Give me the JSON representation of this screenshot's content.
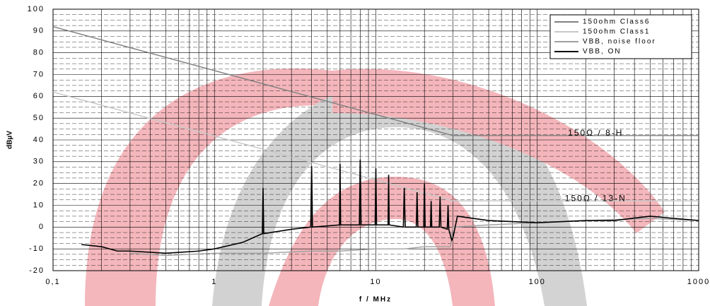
{
  "chart_data": {
    "type": "line",
    "x_label": "f / MHz",
    "y_label": "dBµV",
    "log_x": true,
    "grid": true,
    "xlim": [
      0.1,
      1000
    ],
    "ylim": [
      -20,
      100
    ],
    "xticks": [
      {
        "value": 0.1,
        "label": "0,1"
      },
      1,
      10,
      100,
      1000
    ],
    "yticks": [
      -20,
      -10,
      0,
      10,
      20,
      30,
      40,
      50,
      60,
      70,
      80,
      90,
      100
    ],
    "legend": "top-right",
    "annotations": [
      {
        "text": "150Ω / 8-H",
        "x": 230,
        "y": 43
      },
      {
        "text": "150Ω / 13-N",
        "x": 230,
        "y": 13
      }
    ],
    "series": [
      {
        "name": "150ohm Class6",
        "color": "#808080",
        "x": [
          0.1,
          30,
          1000
        ],
        "values": [
          92,
          42,
          42
        ]
      },
      {
        "name": "150ohm Class1",
        "color": "#c8c8c8",
        "x": [
          0.1,
          30,
          1000
        ],
        "values": [
          62,
          12,
          12
        ]
      },
      {
        "name": "VBB, noise floor",
        "color": "#a0a0a0",
        "x": [
          0.3,
          0.5,
          1,
          2,
          4,
          6,
          10,
          15,
          20,
          29,
          30,
          50,
          100,
          200,
          500,
          1000
        ],
        "values": [
          -12,
          -13,
          -12,
          -12,
          -11,
          -11,
          -10,
          -10,
          -9,
          -9,
          0,
          1,
          2,
          3,
          4,
          3
        ]
      },
      {
        "name": "VBB, ON",
        "color": "#000000",
        "x": [
          0.15,
          0.2,
          0.25,
          0.3,
          0.5,
          0.8,
          1,
          1.5,
          1.98,
          2,
          2.02,
          3,
          3.95,
          4,
          4.05,
          5.95,
          6,
          6.05,
          7.9,
          8,
          8.1,
          9.9,
          10,
          10.1,
          11.9,
          12,
          12.1,
          14.8,
          15,
          15.2,
          17.8,
          18,
          18.2,
          19.8,
          20,
          20.2,
          21.8,
          22,
          22.2,
          24.7,
          25,
          25.3,
          27.7,
          28,
          28.3,
          29.5,
          30,
          32,
          50,
          100,
          200,
          300,
          500,
          700,
          1000
        ],
        "values": [
          -8,
          -9,
          -11,
          -11,
          -12,
          -11,
          -10,
          -7,
          -3,
          18,
          -3,
          -1,
          0,
          28,
          0,
          1,
          29,
          1,
          1,
          31,
          1,
          1,
          27,
          1,
          1,
          24,
          1,
          0,
          18,
          0,
          0,
          16,
          0,
          0,
          20,
          0,
          0,
          12,
          0,
          0,
          14,
          0,
          -1,
          10,
          -1,
          -6,
          -5,
          5,
          3,
          2,
          3,
          3,
          5,
          4,
          3
        ]
      }
    ]
  }
}
